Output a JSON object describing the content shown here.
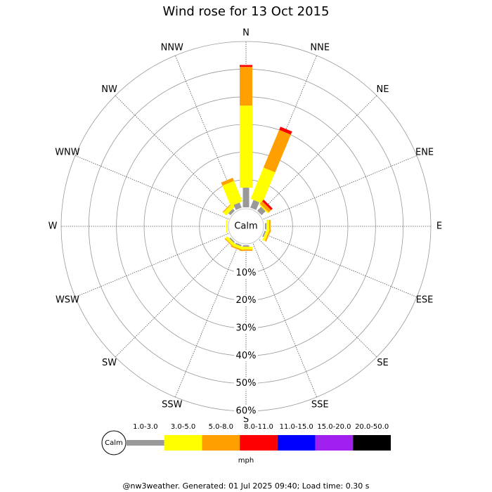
{
  "chart_data": {
    "type": "windrose",
    "title": "Wind rose for 13 Oct 2015",
    "directions": [
      "N",
      "NNE",
      "NE",
      "ENE",
      "E",
      "ESE",
      "SE",
      "SSE",
      "S",
      "SSW",
      "SW",
      "WSW",
      "W",
      "WNW",
      "NW",
      "NNW"
    ],
    "calm_label": "Calm",
    "series": [
      {
        "name": "1.0-3.0",
        "color": "#999999",
        "values": [
          7.1,
          3,
          2,
          0,
          0.5,
          0.5,
          0,
          0,
          0.5,
          0.5,
          0.5,
          0,
          0,
          0,
          1,
          2
        ]
      },
      {
        "name": "3.0-5.0",
        "color": "#ffff00",
        "values": [
          29.7,
          12.2,
          0.5,
          0,
          1,
          1,
          0,
          0,
          1,
          1,
          1,
          0,
          0.3,
          0,
          1.5,
          8
        ]
      },
      {
        "name": "5.0-8.0",
        "color": "#ffa000",
        "values": [
          14,
          14.8,
          1.2,
          0,
          0.5,
          0.5,
          0,
          0,
          0.5,
          0.5,
          0.3,
          0,
          0,
          0,
          0.3,
          1.2
        ]
      },
      {
        "name": "8.0-11.0",
        "color": "#ff0000",
        "values": [
          0.7,
          1.2,
          0.8,
          0,
          0,
          0,
          0,
          0,
          0,
          0,
          0,
          0,
          0,
          0,
          0,
          0
        ]
      },
      {
        "name": "11.0-15.0",
        "color": "#0000ff",
        "values": [
          0,
          0,
          0,
          0,
          0,
          0,
          0,
          0,
          0,
          0,
          0,
          0,
          0,
          0,
          0,
          0
        ]
      },
      {
        "name": "15.0-20.0",
        "color": "#a020f0",
        "values": [
          0,
          0,
          0,
          0,
          0,
          0,
          0,
          0,
          0,
          0,
          0,
          0,
          0,
          0,
          0,
          0
        ]
      },
      {
        "name": "20.0-50.0",
        "color": "#000000",
        "values": [
          0,
          0,
          0,
          0,
          0,
          0,
          0,
          0,
          0,
          0,
          0,
          0,
          0,
          0,
          0,
          0
        ]
      }
    ],
    "ylim": [
      0,
      60
    ],
    "yticks": [
      {
        "value": 10,
        "label": "10%"
      },
      {
        "value": 20,
        "label": "20%"
      },
      {
        "value": 30,
        "label": "30%"
      },
      {
        "value": 40,
        "label": "40%"
      },
      {
        "value": 50,
        "label": "50%"
      },
      {
        "value": 60,
        "label": "60%"
      }
    ],
    "unit": "mph",
    "footer": "@nw3weather. Generated: 01 Jul 2025 09:40; Load time: 0.30 s"
  }
}
